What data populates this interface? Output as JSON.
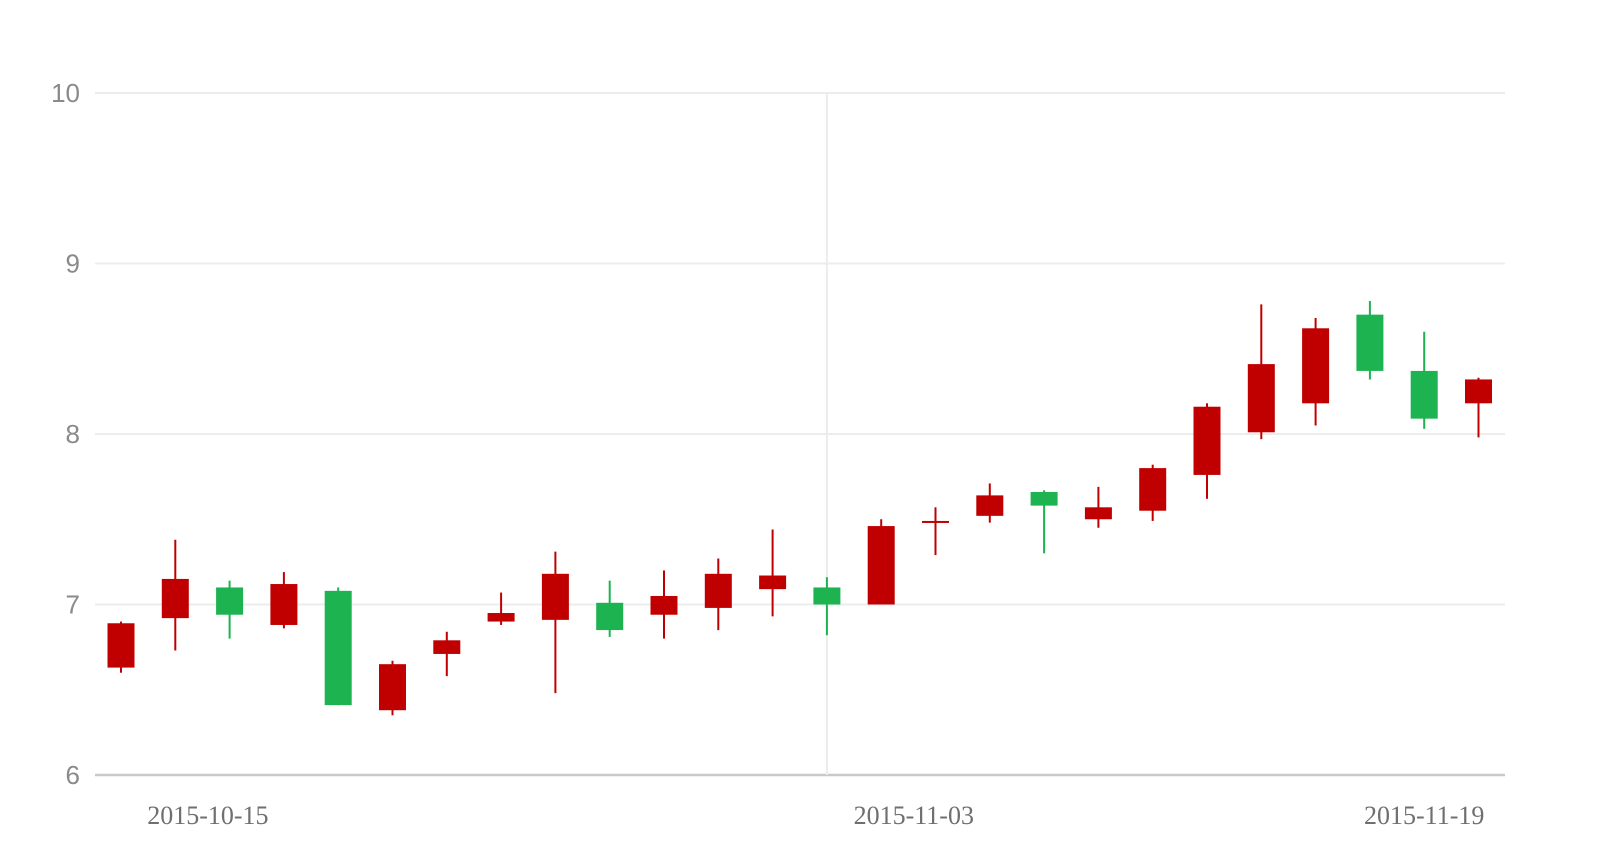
{
  "chart_data": {
    "type": "candlestick",
    "title": "",
    "xlabel": "",
    "ylabel": "",
    "ylim": [
      6,
      10
    ],
    "yticks": [
      "6",
      "7",
      "8",
      "9",
      "10"
    ],
    "x_tick_labels": [
      "2015-10-15",
      "2015-11-03",
      "2015-11-19"
    ],
    "vertical_grid_at": "2015-11-03",
    "grid": true,
    "colors": {
      "up": "#c00000",
      "down": "#1db350",
      "grid": "#ececec",
      "axis": "#c8c8c8"
    },
    "candles": [
      {
        "open": 6.63,
        "close": 6.89,
        "high": 6.9,
        "low": 6.6
      },
      {
        "open": 6.92,
        "close": 7.15,
        "high": 7.38,
        "low": 6.73
      },
      {
        "open": 7.1,
        "close": 6.94,
        "high": 7.14,
        "low": 6.8
      },
      {
        "open": 6.88,
        "close": 7.12,
        "high": 7.19,
        "low": 6.86
      },
      {
        "open": 7.08,
        "close": 6.41,
        "high": 7.1,
        "low": 6.41
      },
      {
        "open": 6.38,
        "close": 6.65,
        "high": 6.67,
        "low": 6.35
      },
      {
        "open": 6.71,
        "close": 6.79,
        "high": 6.84,
        "low": 6.58
      },
      {
        "open": 6.9,
        "close": 6.95,
        "high": 7.07,
        "low": 6.88
      },
      {
        "open": 6.91,
        "close": 7.18,
        "high": 7.31,
        "low": 6.48
      },
      {
        "open": 7.01,
        "close": 6.85,
        "high": 7.14,
        "low": 6.81
      },
      {
        "open": 6.94,
        "close": 7.05,
        "high": 7.2,
        "low": 6.8
      },
      {
        "open": 6.98,
        "close": 7.18,
        "high": 7.27,
        "low": 6.85
      },
      {
        "open": 7.09,
        "close": 7.17,
        "high": 7.44,
        "low": 6.93
      },
      {
        "open": 7.1,
        "close": 7.0,
        "high": 7.16,
        "low": 6.82
      },
      {
        "open": 7.0,
        "close": 7.46,
        "high": 7.5,
        "low": 7.0
      },
      {
        "open": 7.48,
        "close": 7.49,
        "high": 7.57,
        "low": 7.29
      },
      {
        "open": 7.52,
        "close": 7.64,
        "high": 7.71,
        "low": 7.48
      },
      {
        "open": 7.66,
        "close": 7.58,
        "high": 7.67,
        "low": 7.3
      },
      {
        "open": 7.5,
        "close": 7.57,
        "high": 7.69,
        "low": 7.45
      },
      {
        "open": 7.55,
        "close": 7.8,
        "high": 7.82,
        "low": 7.49
      },
      {
        "open": 7.76,
        "close": 8.16,
        "high": 8.18,
        "low": 7.62
      },
      {
        "open": 8.01,
        "close": 8.41,
        "high": 8.76,
        "low": 7.97
      },
      {
        "open": 8.18,
        "close": 8.62,
        "high": 8.68,
        "low": 8.05
      },
      {
        "open": 8.7,
        "close": 8.37,
        "high": 8.78,
        "low": 8.32
      },
      {
        "open": 8.37,
        "close": 8.09,
        "high": 8.6,
        "low": 8.03
      },
      {
        "open": 8.18,
        "close": 8.32,
        "high": 8.33,
        "low": 7.98
      }
    ]
  }
}
